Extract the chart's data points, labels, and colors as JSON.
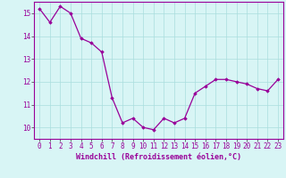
{
  "x": [
    0,
    1,
    2,
    3,
    4,
    5,
    6,
    7,
    8,
    9,
    10,
    11,
    12,
    13,
    14,
    15,
    16,
    17,
    18,
    19,
    20,
    21,
    22,
    23
  ],
  "y": [
    15.2,
    14.6,
    15.3,
    15.0,
    13.9,
    13.7,
    13.3,
    11.3,
    10.2,
    10.4,
    10.0,
    9.9,
    10.4,
    10.2,
    10.4,
    11.5,
    11.8,
    12.1,
    12.1,
    12.0,
    11.9,
    11.7,
    11.6,
    12.1
  ],
  "line_color": "#990099",
  "marker": "D",
  "markersize": 1.8,
  "linewidth": 0.9,
  "xlabel": "Windchill (Refroidissement éolien,°C)",
  "xlabel_fontsize": 6.0,
  "xlim": [
    -0.5,
    23.5
  ],
  "ylim": [
    9.5,
    15.5
  ],
  "yticks": [
    10,
    11,
    12,
    13,
    14,
    15
  ],
  "xticks": [
    0,
    1,
    2,
    3,
    4,
    5,
    6,
    7,
    8,
    9,
    10,
    11,
    12,
    13,
    14,
    15,
    16,
    17,
    18,
    19,
    20,
    21,
    22,
    23
  ],
  "tick_fontsize": 5.5,
  "background_color": "#d8f5f5",
  "grid_color": "#aadddd",
  "grid_linewidth": 0.5
}
